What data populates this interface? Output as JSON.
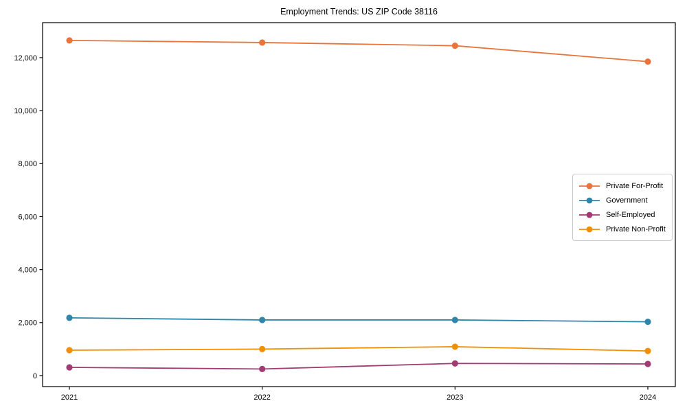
{
  "chart_data": {
    "type": "line",
    "title": "Employment Trends: US ZIP Code 38116",
    "xlabel": "",
    "ylabel": "",
    "categories": [
      "2021",
      "2022",
      "2023",
      "2024"
    ],
    "series": [
      {
        "name": "Private For-Profit",
        "color": "#E8743B",
        "values": [
          12650,
          12570,
          12450,
          11850
        ]
      },
      {
        "name": "Government",
        "color": "#2E86AB",
        "values": [
          2180,
          2100,
          2100,
          2030
        ]
      },
      {
        "name": "Self-Employed",
        "color": "#A23B72",
        "values": [
          310,
          250,
          460,
          440
        ]
      },
      {
        "name": "Private Non-Profit",
        "color": "#F18F01",
        "values": [
          960,
          1000,
          1090,
          930
        ]
      }
    ],
    "yticks": [
      {
        "value": 0,
        "label": "0"
      },
      {
        "value": 2000,
        "label": "2,000"
      },
      {
        "value": 4000,
        "label": "4,000"
      },
      {
        "value": 6000,
        "label": "6,000"
      },
      {
        "value": 8000,
        "label": "8,000"
      },
      {
        "value": 10000,
        "label": "10,000"
      },
      {
        "value": 12000,
        "label": "12,000"
      }
    ],
    "ylim": [
      -415,
      13320
    ],
    "grid": false,
    "legend_position": "right",
    "frame_color": "#000000",
    "background_color": "#ffffff"
  }
}
